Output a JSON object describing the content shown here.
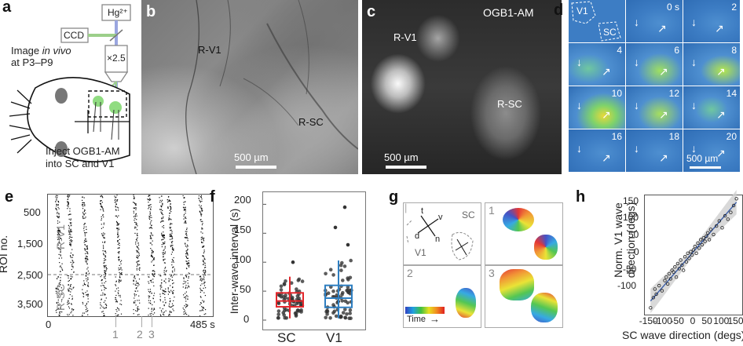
{
  "panel_labels": {
    "a": "a",
    "b": "b",
    "c": "c",
    "d": "d",
    "e": "e",
    "f": "f",
    "g": "g",
    "h": "h"
  },
  "panel_a": {
    "hg_label": "Hg²⁺",
    "ccd_label": "CCD",
    "objective_label": "×2.5",
    "image_line1": "Image",
    "image_italic": "in vivo",
    "image_line2": "at P3–P9",
    "inject_line1": "Inject OGB1-AM",
    "inject_line2": "into SC and V1"
  },
  "panel_b": {
    "label_v1": "R-V1",
    "label_sc": "R-SC",
    "scalebar": "500 µm"
  },
  "panel_c": {
    "title": "OGB1-AM",
    "label_v1": "R-V1",
    "label_sc": "R-SC",
    "scalebar": "500 µm"
  },
  "panel_d": {
    "outline_v1": "V1",
    "outline_sc": "SC",
    "frame_times": [
      "0 s",
      "2",
      "4",
      "6",
      "8",
      "10",
      "12",
      "14",
      "16",
      "18",
      "20"
    ],
    "scalebar": "500 µm"
  },
  "panel_e": {
    "ylabel": "ROI no.",
    "yticks": [
      "500",
      "1,500",
      "2,500",
      "3,500"
    ],
    "xticks": [
      "0",
      "485 s"
    ],
    "region_v1": "R-V1",
    "region_sc": "R-SC",
    "wave_markers": [
      "1",
      "2",
      "3"
    ]
  },
  "panel_f": {
    "ylabel": "Inter-wave interval (s)",
    "yticks": [
      "0",
      "50",
      "100",
      "150",
      "200"
    ],
    "categories": [
      "SC",
      "V1"
    ]
  },
  "panel_g": {
    "sc_label": "SC",
    "v1_label": "V1",
    "axes_letters": {
      "t": "t",
      "v": "v",
      "d": "d",
      "n": "n"
    },
    "subpanel_numbers": [
      "1",
      "2",
      "3"
    ],
    "time_label": "Time"
  },
  "panel_h": {
    "xlabel": "SC wave direction (degs)",
    "ylabel_line1": "Norm. V1 wave",
    "ylabel_line2": "direction (degs)",
    "xticks": [
      "-150",
      "-100",
      "-50",
      "0",
      "50",
      "100",
      "150"
    ],
    "yticks": [
      "-100",
      "-50",
      "0",
      "50",
      "100",
      "150"
    ]
  },
  "colors": {
    "box_sc": "#e3262b",
    "box_v1": "#2f7fc1",
    "fit_line": "#3b5ea8",
    "band": "#cfcfcf"
  },
  "chart_data": [
    {
      "type": "box",
      "panel": "f",
      "categories": [
        "SC",
        "V1"
      ],
      "ylabel": "Inter-wave interval (s)",
      "ylim": [
        0,
        210
      ],
      "series": [
        {
          "name": "SC",
          "q1": 23,
          "median": 33,
          "q3": 47,
          "whisker_low": 3,
          "whisker_high": 75
        },
        {
          "name": "V1",
          "q1": 22,
          "median": 38,
          "q3": 60,
          "whisker_low": 3,
          "whisker_high": 103
        }
      ]
    },
    {
      "type": "scatter",
      "panel": "h",
      "xlabel": "SC wave direction (degs)",
      "ylabel": "Norm. V1 wave direction (degs)",
      "xlim": [
        -170,
        170
      ],
      "ylim": [
        -180,
        170
      ],
      "x": [
        -150,
        -140,
        -135,
        -130,
        -120,
        -110,
        -100,
        -95,
        -90,
        -85,
        -80,
        -75,
        -70,
        -65,
        -60,
        -55,
        -50,
        -45,
        -40,
        -35,
        -30,
        -25,
        -20,
        -15,
        -10,
        -5,
        0,
        5,
        10,
        15,
        20,
        25,
        30,
        35,
        40,
        45,
        50,
        55,
        60,
        70,
        80,
        90,
        100,
        110,
        120,
        130,
        140,
        150
      ],
      "y": [
        -160,
        -130,
        -105,
        -120,
        -95,
        -110,
        -80,
        -70,
        -90,
        -60,
        -75,
        -50,
        -55,
        -40,
        -70,
        -30,
        -45,
        -20,
        -35,
        -50,
        -10,
        -25,
        0,
        -15,
        5,
        -5,
        10,
        20,
        0,
        30,
        15,
        40,
        25,
        45,
        35,
        50,
        60,
        40,
        70,
        55,
        80,
        95,
        75,
        110,
        100,
        120,
        140,
        160
      ],
      "fit": {
        "x": [
          -150,
          150
        ],
        "y": [
          -140,
          150
        ]
      }
    },
    {
      "type": "heatmap",
      "panel": "e",
      "ylabel": "ROI no.",
      "yticks": [
        500,
        1500,
        2500,
        3500
      ],
      "xlim": [
        0,
        485
      ]
    }
  ]
}
